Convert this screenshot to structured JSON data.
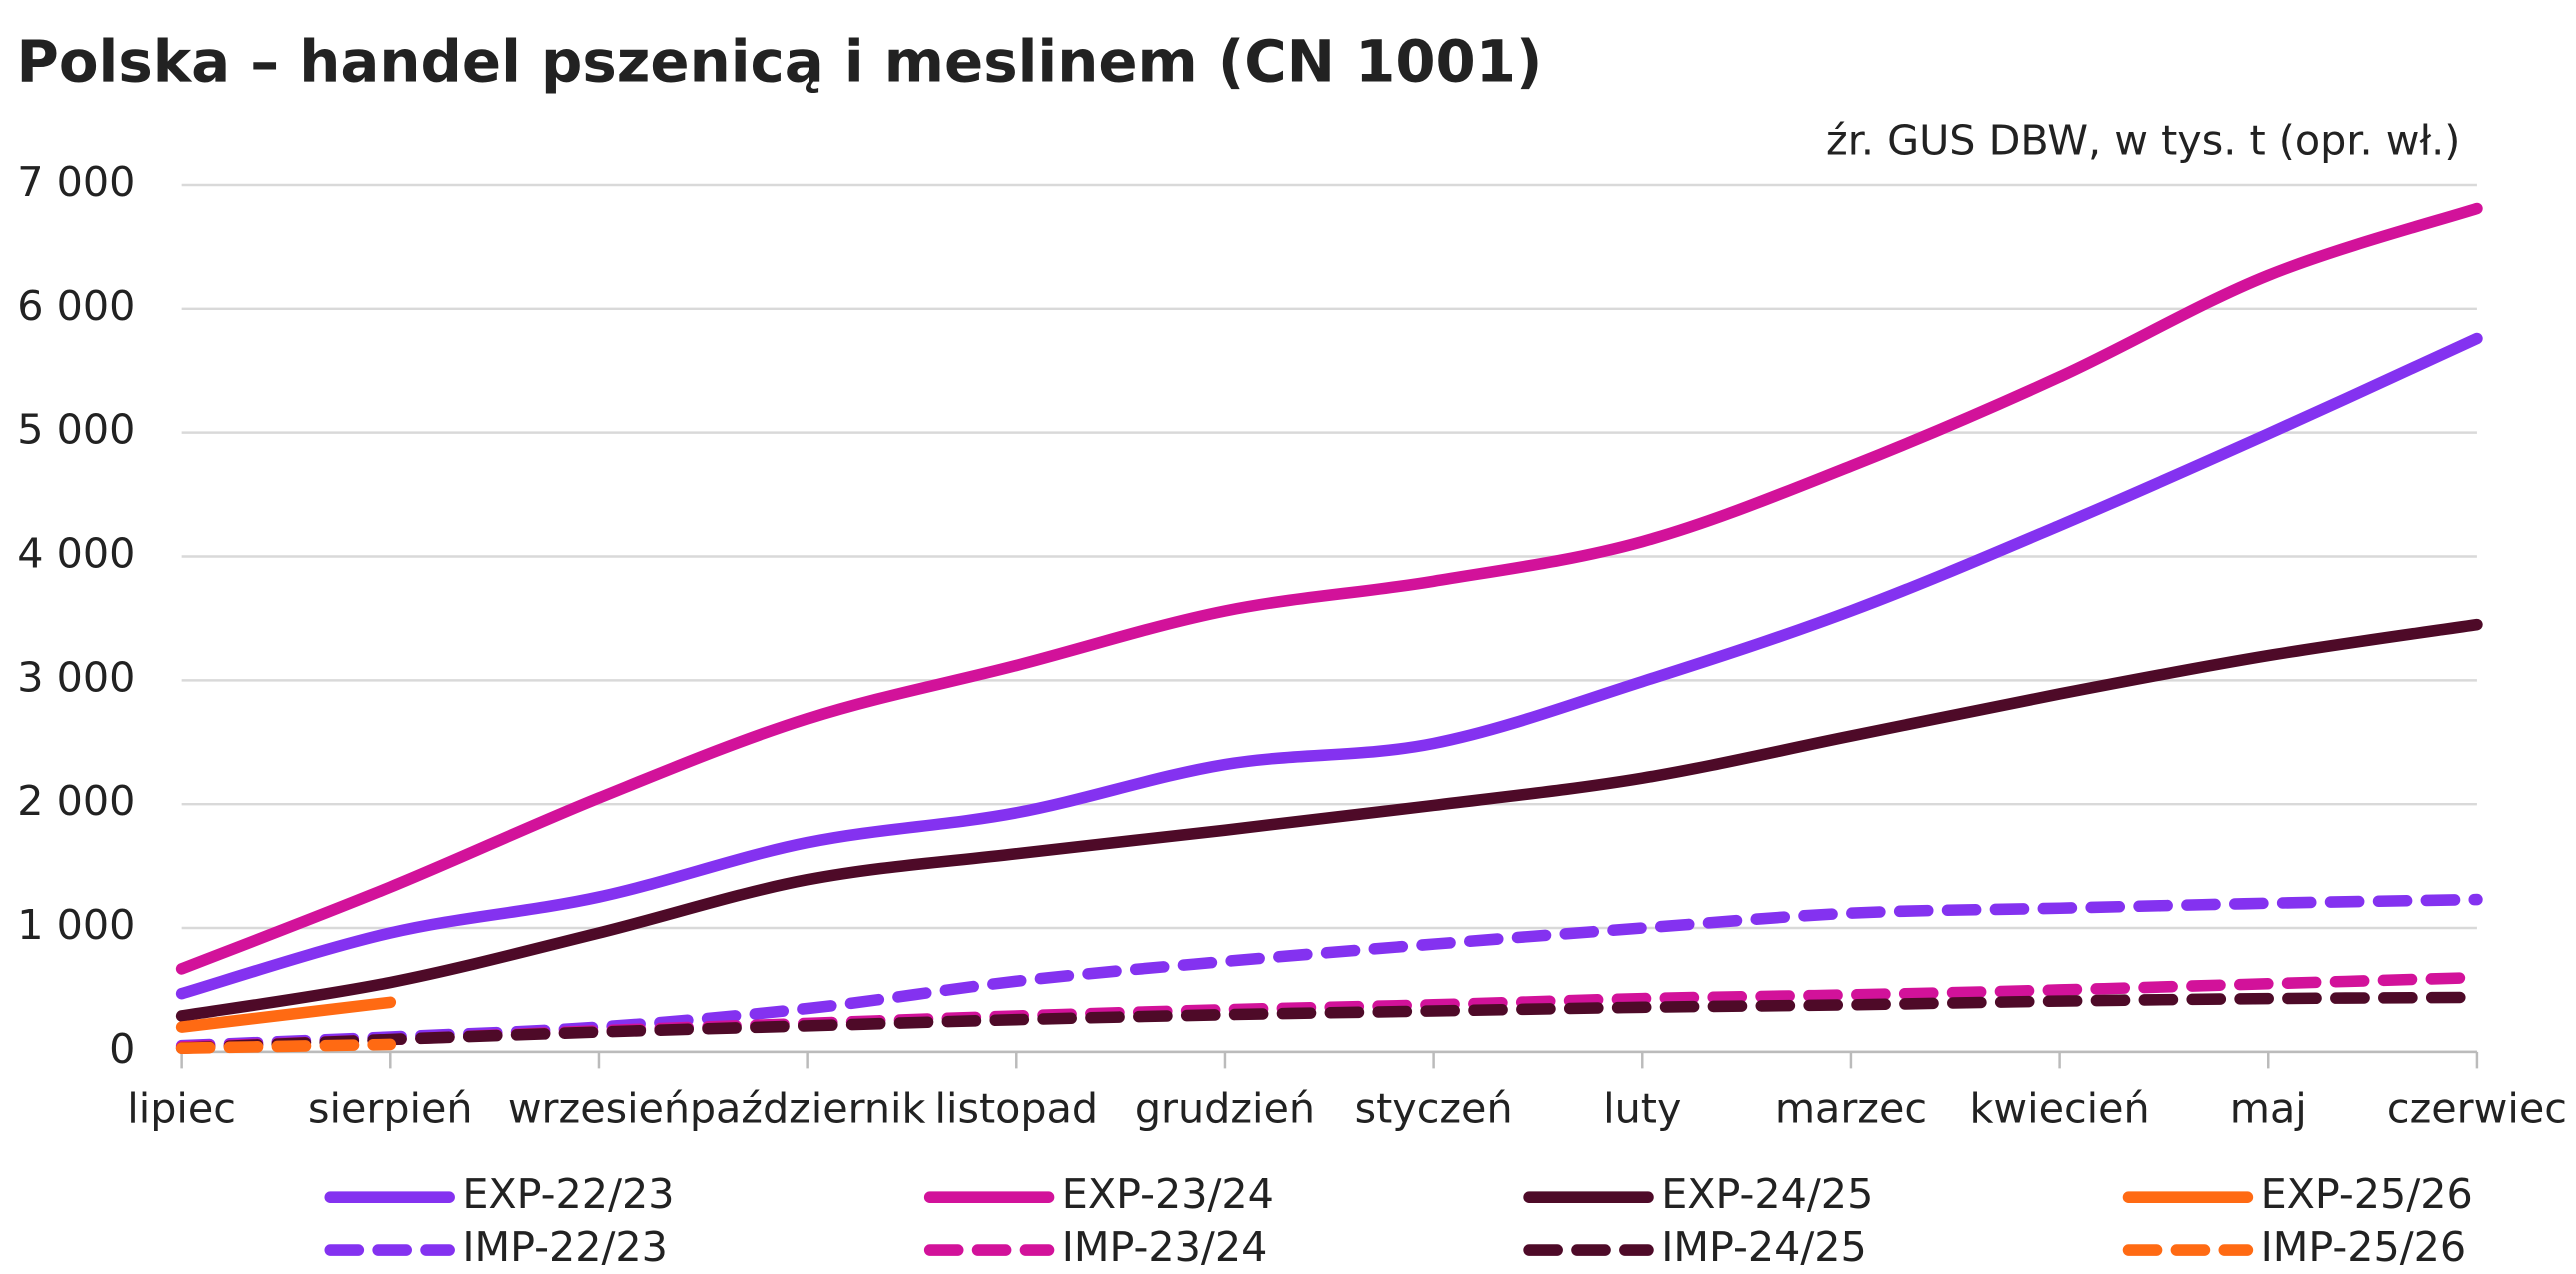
{
  "chart_data": {
    "type": "line",
    "title": "Polska – handel pszenicą i meslinem (CN 1001)",
    "subtitle": "źr. GUS DBW, w tys. t (opr. wł.)",
    "categories": [
      "lipiec",
      "sierpień",
      "wrzesień",
      "październik",
      "listopad",
      "grudzień",
      "styczeń",
      "luty",
      "marzec",
      "kwiecień",
      "maj",
      "czerwiec"
    ],
    "ylim": [
      0,
      7000
    ],
    "yticks": [
      0,
      {
        "value": 1000,
        "label": "1 000"
      },
      {
        "value": 2000,
        "label": "2 000"
      },
      {
        "value": 3000,
        "label": "3 000"
      },
      {
        "value": 4000,
        "label": "4 000"
      },
      {
        "value": 5000,
        "label": "5 000"
      },
      {
        "value": 6000,
        "label": "6 000"
      },
      {
        "value": 7000,
        "label": "7 000"
      }
    ],
    "grid": true,
    "legend": "bottom",
    "series": [
      {
        "name": "EXP-22/23",
        "color": "#8432f0",
        "dashed": false,
        "values": [
          470,
          960,
          1250,
          1690,
          1930,
          2320,
          2490,
          2990,
          3560,
          4250,
          4990,
          5760
        ]
      },
      {
        "name": "EXP-23/24",
        "color": "#d2129a",
        "dashed": false,
        "values": [
          670,
          1330,
          2050,
          2690,
          3120,
          3560,
          3800,
          4120,
          4730,
          5450,
          6270,
          6810
        ]
      },
      {
        "name": "EXP-24/25",
        "color": "#4e0a28",
        "dashed": false,
        "values": [
          290,
          560,
          960,
          1390,
          1600,
          1790,
          1990,
          2210,
          2550,
          2890,
          3200,
          3450
        ]
      },
      {
        "name": "EXP-25/26",
        "color": "#ff6a13",
        "dashed": false,
        "values": [
          200,
          400,
          null,
          null,
          null,
          null,
          null,
          null,
          null,
          null,
          null,
          null
        ]
      },
      {
        "name": "IMP-22/23",
        "color": "#8432f0",
        "dashed": true,
        "values": [
          50,
          120,
          200,
          350,
          570,
          730,
          870,
          1000,
          1120,
          1160,
          1200,
          1230
        ]
      },
      {
        "name": "IMP-23/24",
        "color": "#d2129a",
        "dashed": true,
        "values": [
          40,
          100,
          170,
          230,
          290,
          340,
          380,
          430,
          460,
          500,
          550,
          600
        ]
      },
      {
        "name": "IMP-24/25",
        "color": "#4e0a28",
        "dashed": true,
        "values": [
          30,
          100,
          160,
          210,
          260,
          300,
          330,
          360,
          380,
          410,
          430,
          440
        ]
      },
      {
        "name": "IMP-25/26",
        "color": "#ff6a13",
        "dashed": true,
        "values": [
          30,
          60,
          null,
          null,
          null,
          null,
          null,
          null,
          null,
          null,
          null,
          null
        ]
      }
    ]
  }
}
